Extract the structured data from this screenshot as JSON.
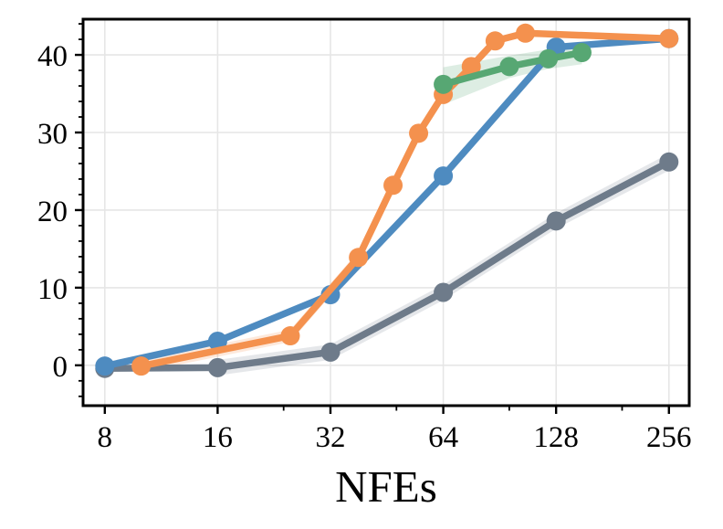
{
  "chart_data": {
    "type": "line",
    "title": "",
    "xlabel": "NFEs",
    "ylabel": "",
    "x_scale": "log2",
    "xlim": [
      7,
      290
    ],
    "ylim": [
      -5.2,
      44.6
    ],
    "x_ticks": [
      8,
      16,
      32,
      64,
      128,
      256
    ],
    "x_tick_labels": [
      "8",
      "16",
      "32",
      "64",
      "128",
      "256"
    ],
    "x_minor_ticks": [
      24,
      48,
      96,
      192
    ],
    "y_ticks": [
      0,
      10,
      20,
      30,
      40
    ],
    "y_tick_labels": [
      "0",
      "10",
      "20",
      "30",
      "40"
    ],
    "y_minor_ticks": [
      -4,
      -2,
      2,
      4,
      6,
      8,
      12,
      14,
      16,
      18,
      22,
      24,
      26,
      28,
      32,
      34,
      36,
      38,
      42,
      44
    ],
    "grid": "major",
    "legend": "none",
    "line_width": 7.5,
    "marker_radius": 10.5,
    "draw_order": [
      "gray",
      "blue",
      "orange",
      "green"
    ],
    "series": [
      {
        "name": "gray",
        "color": "#6e7b8a",
        "x": [
          8,
          16,
          32,
          64,
          128,
          256
        ],
        "y": [
          -0.4,
          -0.3,
          1.7,
          9.4,
          18.6,
          26.2
        ],
        "band": {
          "x": [
            16,
            32,
            64,
            128,
            256
          ],
          "lower": [
            -1.3,
            0.7,
            8.4,
            17.6,
            25.1
          ],
          "upper": [
            0.7,
            2.7,
            10.4,
            19.6,
            27.3
          ]
        },
        "band_fill": "rgba(110,123,138,0.18)"
      },
      {
        "name": "blue",
        "color": "#4e8bc0",
        "x": [
          8,
          16,
          32,
          64,
          128,
          256
        ],
        "y": [
          -0.1,
          3.1,
          9.1,
          24.4,
          41.0,
          42.1
        ]
      },
      {
        "name": "orange",
        "color": "#f4914e",
        "x": [
          10,
          25,
          38,
          47,
          55,
          64,
          76,
          88,
          106,
          256
        ],
        "y": [
          -0.1,
          3.8,
          13.9,
          23.2,
          29.9,
          34.9,
          38.5,
          41.8,
          42.8,
          42.1
        ],
        "band": {
          "x": [
            10,
            25,
            38
          ],
          "lower": [
            -0.9,
            3.0,
            13.1
          ],
          "upper": [
            0.7,
            4.6,
            14.7
          ]
        },
        "band_fill": "rgba(244,145,78,0.2)"
      },
      {
        "name": "green",
        "color": "#57a773",
        "x": [
          64,
          96,
          122,
          150
        ],
        "y": [
          36.2,
          38.5,
          39.5,
          40.3
        ],
        "band": {
          "x": [
            64,
            96,
            122,
            150
          ],
          "lower": [
            33.6,
            37.0,
            38.2,
            38.8
          ],
          "upper": [
            38.4,
            39.9,
            40.7,
            41.6
          ]
        },
        "band_fill": "rgba(87,167,115,0.2)"
      }
    ]
  },
  "styles": {
    "background": "#ffffff",
    "grid_color": "#e6e6e6",
    "spine_color": "#000000",
    "tick_color": "#000000",
    "text_color": "#000000"
  }
}
